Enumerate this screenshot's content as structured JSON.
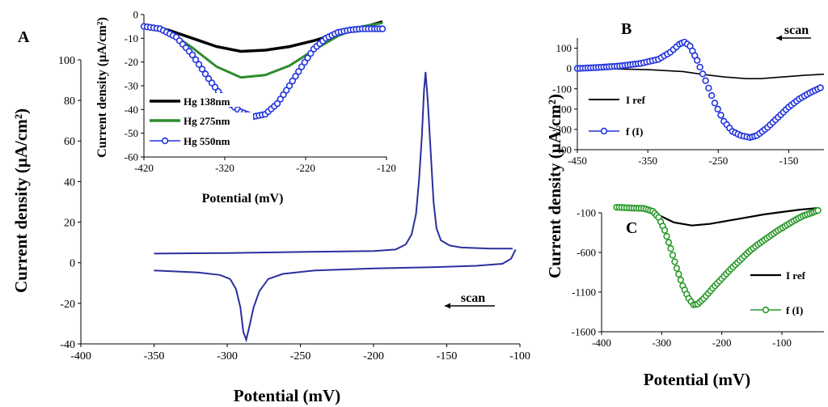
{
  "colors": {
    "axis": "#000000",
    "cv": "#2b2f9e",
    "black": "#000000",
    "green": "#2e8b2e",
    "blue": "#2233dd",
    "green_marker": "#2a9a2a"
  },
  "shared_ylabel": "Current density (µA/cm²)",
  "chart_data": [
    {
      "id": "A",
      "panel_label": "A",
      "type": "line",
      "title": "",
      "xlabel": "Potential (mV)",
      "ylabel": "Current density (µA/cm²)",
      "xlim": [
        -400,
        -100
      ],
      "ylim": [
        -40,
        100
      ],
      "xticks": [
        -400,
        -350,
        -300,
        -250,
        -200,
        -150,
        -100
      ],
      "yticks": [
        -40,
        -20,
        0,
        20,
        40,
        60,
        80,
        100
      ],
      "annotation": "scan",
      "series": [
        {
          "name": "forward",
          "points": [
            [
              -350,
              4.5
            ],
            [
              -300,
              4.8
            ],
            [
              -250,
              5.3
            ],
            [
              -200,
              5.8
            ],
            [
              -185,
              6.5
            ],
            [
              -178,
              9
            ],
            [
              -174,
              14
            ],
            [
              -171,
              24
            ],
            [
              -169,
              40
            ],
            [
              -167,
              62
            ],
            [
              -165.5,
              85
            ],
            [
              -164.5,
              94
            ],
            [
              -163,
              80
            ],
            [
              -161,
              55
            ],
            [
              -159,
              30
            ],
            [
              -157,
              17
            ],
            [
              -154,
              11
            ],
            [
              -148,
              8.5
            ],
            [
              -140,
              7.5
            ],
            [
              -120,
              7
            ],
            [
              -105,
              7
            ]
          ]
        },
        {
          "name": "reverse",
          "points": [
            [
              -103,
              6.5
            ],
            [
              -106,
              2
            ],
            [
              -112,
              -0.5
            ],
            [
              -130,
              -1.5
            ],
            [
              -160,
              -2.2
            ],
            [
              -200,
              -2.8
            ],
            [
              -240,
              -3.8
            ],
            [
              -262,
              -5.5
            ],
            [
              -272,
              -8
            ],
            [
              -278,
              -14
            ],
            [
              -282,
              -22
            ],
            [
              -285,
              -32
            ],
            [
              -287,
              -38
            ],
            [
              -289,
              -34
            ],
            [
              -291,
              -22
            ],
            [
              -294,
              -13
            ],
            [
              -298,
              -8
            ],
            [
              -305,
              -6
            ],
            [
              -320,
              -4.8
            ],
            [
              -350,
              -3.8
            ]
          ]
        }
      ]
    },
    {
      "id": "inset",
      "type": "line",
      "xlabel": "Potential (mV)",
      "ylabel": "Current density (µA/cm²)",
      "xlim": [
        -420,
        -120
      ],
      "ylim": [
        -60,
        0
      ],
      "xticks": [
        -420,
        -320,
        -220,
        -120
      ],
      "yticks": [
        -60,
        -50,
        -40,
        -30,
        -20,
        -10,
        0
      ],
      "legend": [
        "Hg 138nm",
        "Hg 275nm",
        "Hg 550nm"
      ],
      "series": [
        {
          "name": "Hg 138nm",
          "color": "black",
          "points": [
            [
              -420,
              -5
            ],
            [
              -390,
              -6.5
            ],
            [
              -360,
              -10
            ],
            [
              -330,
              -13.5
            ],
            [
              -300,
              -15.5
            ],
            [
              -270,
              -15
            ],
            [
              -240,
              -13.5
            ],
            [
              -210,
              -11
            ],
            [
              -180,
              -8
            ],
            [
              -150,
              -5.5
            ],
            [
              -125,
              -3
            ]
          ]
        },
        {
          "name": "Hg 275nm",
          "color": "green",
          "points": [
            [
              -420,
              -5
            ],
            [
              -390,
              -7
            ],
            [
              -360,
              -14
            ],
            [
              -330,
              -22
            ],
            [
              -300,
              -26.5
            ],
            [
              -270,
              -25.5
            ],
            [
              -240,
              -21.5
            ],
            [
              -210,
              -15
            ],
            [
              -180,
              -9
            ],
            [
              -150,
              -5
            ],
            [
              -125,
              -3.5
            ]
          ]
        },
        {
          "name": "Hg 550nm",
          "color": "blue",
          "points": [
            [
              -420,
              -5
            ],
            [
              -400,
              -6
            ],
            [
              -380,
              -9.5
            ],
            [
              -360,
              -17
            ],
            [
              -340,
              -27
            ],
            [
              -320,
              -36
            ],
            [
              -300,
              -41
            ],
            [
              -285,
              -43
            ],
            [
              -270,
              -42
            ],
            [
              -255,
              -37.5
            ],
            [
              -240,
              -30
            ],
            [
              -225,
              -22
            ],
            [
              -210,
              -14.5
            ],
            [
              -195,
              -10
            ],
            [
              -180,
              -7.5
            ],
            [
              -165,
              -6.5
            ],
            [
              -150,
              -6
            ],
            [
              -135,
              -6
            ],
            [
              -125,
              -6
            ]
          ]
        }
      ]
    },
    {
      "id": "B",
      "panel_label": "B",
      "type": "line",
      "xlabel": "",
      "ylabel": "",
      "xlim": [
        -450,
        -100
      ],
      "ylim": [
        -400,
        150
      ],
      "xticks": [
        -450,
        -350,
        -250,
        -150
      ],
      "yticks": [
        -400,
        -300,
        -200,
        -100,
        0,
        100
      ],
      "annotation": "scan",
      "legend": [
        "I ref",
        "f (I)"
      ],
      "series": [
        {
          "name": "I ref",
          "color": "black",
          "points": [
            [
              -450,
              0
            ],
            [
              -400,
              -2
            ],
            [
              -350,
              -6
            ],
            [
              -300,
              -15
            ],
            [
              -270,
              -30
            ],
            [
              -240,
              -42
            ],
            [
              -210,
              -50
            ],
            [
              -190,
              -50
            ],
            [
              -160,
              -42
            ],
            [
              -130,
              -34
            ],
            [
              -100,
              -28
            ]
          ]
        },
        {
          "name": "f (I)",
          "color": "blue",
          "points": [
            [
              -450,
              0
            ],
            [
              -420,
              5
            ],
            [
              -390,
              12
            ],
            [
              -360,
              25
            ],
            [
              -335,
              45
            ],
            [
              -318,
              80
            ],
            [
              -305,
              120
            ],
            [
              -298,
              130
            ],
            [
              -290,
              110
            ],
            [
              -280,
              40
            ],
            [
              -268,
              -60
            ],
            [
              -255,
              -170
            ],
            [
              -242,
              -260
            ],
            [
              -230,
              -310
            ],
            [
              -218,
              -330
            ],
            [
              -205,
              -340
            ],
            [
              -195,
              -330
            ],
            [
              -180,
              -290
            ],
            [
              -165,
              -240
            ],
            [
              -150,
              -190
            ],
            [
              -135,
              -150
            ],
            [
              -120,
              -120
            ],
            [
              -105,
              -95
            ]
          ]
        }
      ]
    },
    {
      "id": "C",
      "panel_label": "C",
      "type": "line",
      "xlabel": "Potential (mV)",
      "ylabel": "",
      "xlim": [
        -400,
        -30
      ],
      "ylim": [
        -1600,
        -100
      ],
      "xticks": [
        -400,
        -300,
        -200,
        -100
      ],
      "yticks": [
        -1600,
        -1100,
        -600,
        -100
      ],
      "legend": [
        "I ref",
        "f (I)"
      ],
      "series": [
        {
          "name": "I ref",
          "color": "black",
          "points": [
            [
              -375,
              -30
            ],
            [
              -340,
              -40
            ],
            [
              -310,
              -110
            ],
            [
              -280,
              -220
            ],
            [
              -250,
              -260
            ],
            [
              -220,
              -240
            ],
            [
              -190,
              -200
            ],
            [
              -160,
              -160
            ],
            [
              -130,
              -120
            ],
            [
              -100,
              -90
            ],
            [
              -70,
              -60
            ],
            [
              -40,
              -40
            ]
          ]
        },
        {
          "name": "f (I)",
          "color": "green",
          "points": [
            [
              -375,
              -30
            ],
            [
              -350,
              -40
            ],
            [
              -330,
              -45
            ],
            [
              -315,
              -80
            ],
            [
              -305,
              -160
            ],
            [
              -295,
              -320
            ],
            [
              -285,
              -550
            ],
            [
              -275,
              -800
            ],
            [
              -265,
              -1020
            ],
            [
              -255,
              -1180
            ],
            [
              -247,
              -1260
            ],
            [
              -240,
              -1250
            ],
            [
              -230,
              -1180
            ],
            [
              -215,
              -1050
            ],
            [
              -200,
              -930
            ],
            [
              -185,
              -810
            ],
            [
              -170,
              -700
            ],
            [
              -155,
              -590
            ],
            [
              -140,
              -500
            ],
            [
              -125,
              -420
            ],
            [
              -110,
              -340
            ],
            [
              -95,
              -270
            ],
            [
              -80,
              -200
            ],
            [
              -65,
              -140
            ],
            [
              -50,
              -100
            ],
            [
              -40,
              -70
            ]
          ]
        }
      ]
    }
  ]
}
